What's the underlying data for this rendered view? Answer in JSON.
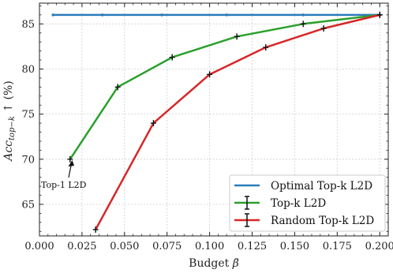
{
  "chart_data": {
    "type": "line",
    "xlabel": "Budget β̄",
    "ylabel": "Acc_top-k ↑ (%)",
    "xlim": [
      0.0,
      0.205
    ],
    "ylim": [
      61.5,
      87.3
    ],
    "xticks": [
      "0.000",
      "0.025",
      "0.050",
      "0.075",
      "0.100",
      "0.125",
      "0.150",
      "0.175",
      "0.200"
    ],
    "xtick_values": [
      0.0,
      0.025,
      0.05,
      0.075,
      0.1,
      0.125,
      0.15,
      0.175,
      0.2
    ],
    "yticks": [
      "65",
      "70",
      "75",
      "80",
      "85"
    ],
    "ytick_values": [
      65,
      70,
      75,
      80,
      85
    ],
    "grid": true,
    "legend_placement": "lower-right",
    "series": [
      {
        "name": "Optimal Top-k L2D",
        "color": "#2b7bba",
        "x": [
          0.008,
          0.037,
          0.072,
          0.11,
          0.155,
          0.2
        ],
        "y": [
          86.0,
          86.0,
          86.0,
          86.0,
          86.0,
          86.0
        ],
        "marker": "dot"
      },
      {
        "name": "Top-k L2D",
        "color": "#2ca02c",
        "x": [
          0.018,
          0.046,
          0.078,
          0.116,
          0.155,
          0.2
        ],
        "y": [
          70.0,
          78.0,
          81.3,
          83.6,
          85.0,
          86.0
        ],
        "marker": "errorbar"
      },
      {
        "name": "Random Top-k L2D",
        "color": "#d62728",
        "x": [
          0.033,
          0.067,
          0.1,
          0.133,
          0.167,
          0.2
        ],
        "y": [
          62.2,
          74.0,
          79.4,
          82.4,
          84.5,
          86.0
        ],
        "marker": "errorbar"
      }
    ],
    "annotations": [
      {
        "text": "Top-1 L2D",
        "target_x": 0.018,
        "target_y": 70.0
      }
    ]
  }
}
